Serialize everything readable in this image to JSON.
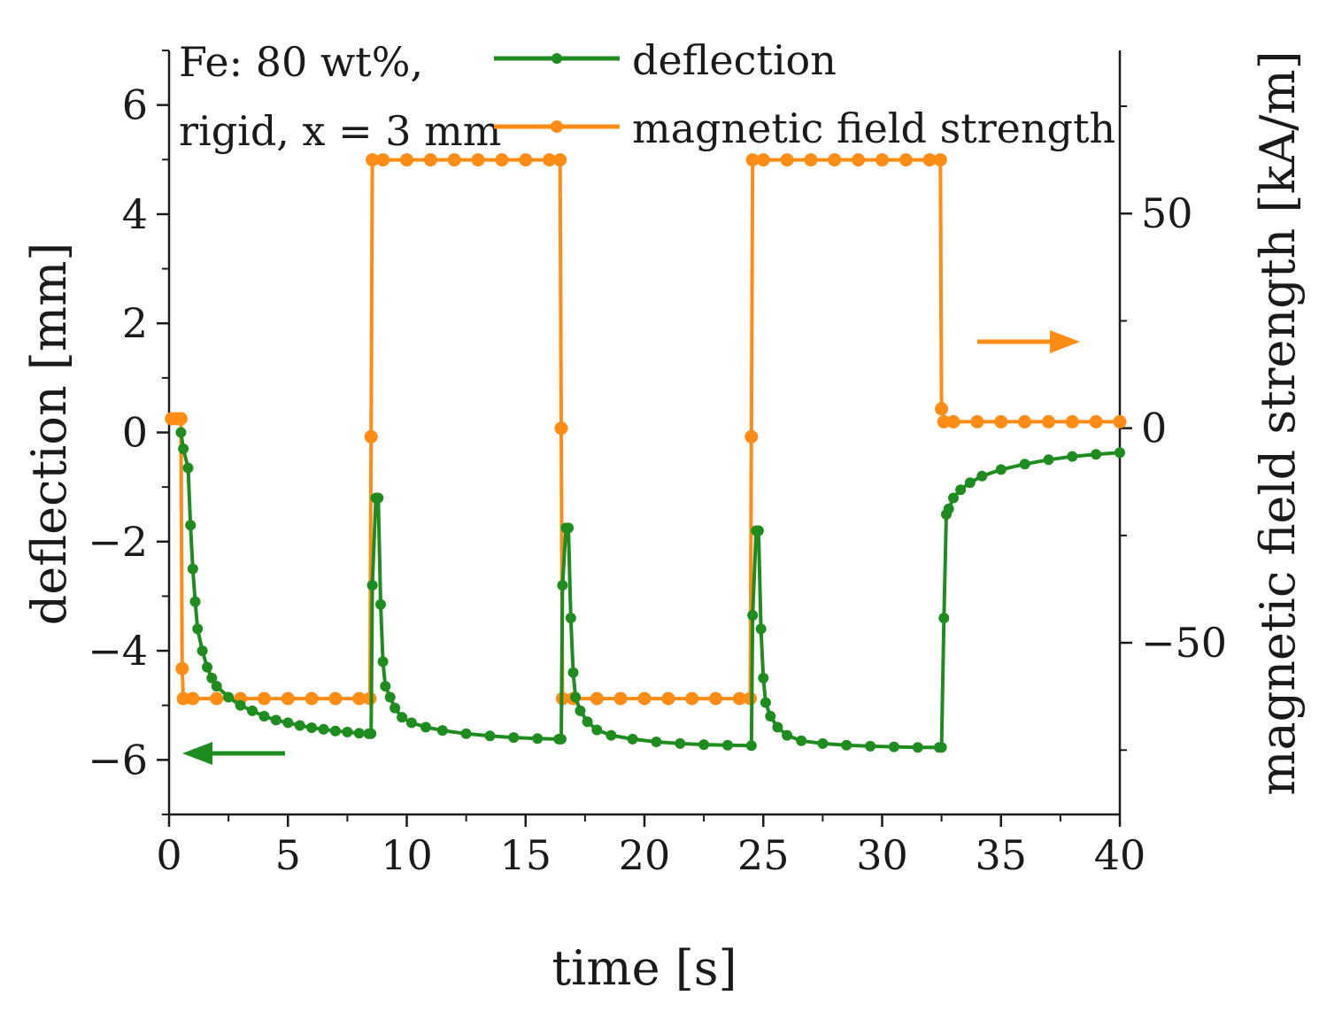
{
  "chart_data": {
    "type": "line",
    "title": "",
    "annotation_lines": [
      "Fe: 80 wt%,",
      "rigid, x = 3 mm"
    ],
    "xlabel": "time [s]",
    "ylabel_left": "deflection [mm]",
    "ylabel_right": "magnetic field strength [kA/m]",
    "xlim": [
      0,
      40
    ],
    "ylim_left": [
      -7,
      7
    ],
    "ylim_right": [
      -90,
      88
    ],
    "x_ticks": [
      0,
      5,
      10,
      15,
      20,
      25,
      30,
      35,
      40
    ],
    "y_left_ticks": [
      -6,
      -4,
      -2,
      0,
      2,
      4,
      6
    ],
    "y_left_tick_labels": [
      "−6",
      "−4",
      "−2",
      "0",
      "2",
      "4",
      "6"
    ],
    "y_right_ticks": [
      -50,
      0,
      50
    ],
    "y_right_tick_labels": [
      "−50",
      "0",
      "50"
    ],
    "legend_position": "top",
    "colors": {
      "deflection": "#1e8c1e",
      "field": "#ff8c14",
      "axis": "#1a1a1a"
    },
    "series": [
      {
        "name": "deflection",
        "axis": "left",
        "color": "#1e8c1e",
        "points": [
          [
            0.5,
            0.0
          ],
          [
            0.6,
            -0.3
          ],
          [
            0.8,
            -0.65
          ],
          [
            0.9,
            -1.7
          ],
          [
            1.0,
            -2.5
          ],
          [
            1.1,
            -3.1
          ],
          [
            1.2,
            -3.6
          ],
          [
            1.4,
            -4.0
          ],
          [
            1.6,
            -4.3
          ],
          [
            1.8,
            -4.5
          ],
          [
            2.0,
            -4.65
          ],
          [
            2.5,
            -4.85
          ],
          [
            3.0,
            -5.0
          ],
          [
            3.5,
            -5.1
          ],
          [
            4.0,
            -5.2
          ],
          [
            4.5,
            -5.27
          ],
          [
            5.0,
            -5.32
          ],
          [
            5.5,
            -5.37
          ],
          [
            6.0,
            -5.41
          ],
          [
            6.5,
            -5.44
          ],
          [
            7.0,
            -5.47
          ],
          [
            7.5,
            -5.49
          ],
          [
            8.0,
            -5.51
          ],
          [
            8.4,
            -5.52
          ],
          [
            8.5,
            -5.52
          ],
          [
            8.55,
            -2.8
          ],
          [
            8.7,
            -1.2
          ],
          [
            8.8,
            -1.2
          ],
          [
            8.9,
            -3.15
          ],
          [
            9.0,
            -4.2
          ],
          [
            9.1,
            -4.65
          ],
          [
            9.3,
            -4.85
          ],
          [
            9.5,
            -5.05
          ],
          [
            9.8,
            -5.22
          ],
          [
            10.2,
            -5.32
          ],
          [
            10.8,
            -5.4
          ],
          [
            11.5,
            -5.46
          ],
          [
            12.5,
            -5.52
          ],
          [
            13.5,
            -5.56
          ],
          [
            14.5,
            -5.59
          ],
          [
            15.5,
            -5.61
          ],
          [
            16.4,
            -5.62
          ],
          [
            16.5,
            -5.62
          ],
          [
            16.55,
            -2.8
          ],
          [
            16.7,
            -1.75
          ],
          [
            16.8,
            -1.75
          ],
          [
            16.9,
            -3.4
          ],
          [
            17.0,
            -4.4
          ],
          [
            17.1,
            -4.85
          ],
          [
            17.3,
            -5.1
          ],
          [
            17.6,
            -5.3
          ],
          [
            18.0,
            -5.45
          ],
          [
            18.6,
            -5.55
          ],
          [
            19.5,
            -5.62
          ],
          [
            20.5,
            -5.67
          ],
          [
            21.5,
            -5.7
          ],
          [
            22.5,
            -5.72
          ],
          [
            23.5,
            -5.73
          ],
          [
            24.5,
            -5.74
          ],
          [
            24.55,
            -3.35
          ],
          [
            24.7,
            -1.8
          ],
          [
            24.8,
            -1.8
          ],
          [
            24.9,
            -3.6
          ],
          [
            25.0,
            -4.5
          ],
          [
            25.1,
            -4.95
          ],
          [
            25.3,
            -5.2
          ],
          [
            25.6,
            -5.4
          ],
          [
            26.0,
            -5.55
          ],
          [
            26.6,
            -5.65
          ],
          [
            27.5,
            -5.7
          ],
          [
            28.5,
            -5.73
          ],
          [
            29.5,
            -5.75
          ],
          [
            30.5,
            -5.76
          ],
          [
            31.5,
            -5.77
          ],
          [
            32.4,
            -5.77
          ],
          [
            32.5,
            -5.77
          ],
          [
            32.6,
            -3.4
          ],
          [
            32.7,
            -1.5
          ],
          [
            32.8,
            -1.4
          ],
          [
            33.0,
            -1.2
          ],
          [
            33.3,
            -1.05
          ],
          [
            33.7,
            -0.92
          ],
          [
            34.2,
            -0.8
          ],
          [
            35.0,
            -0.68
          ],
          [
            36.0,
            -0.58
          ],
          [
            37.0,
            -0.5
          ],
          [
            38.0,
            -0.44
          ],
          [
            39.0,
            -0.4
          ],
          [
            40.0,
            -0.37
          ]
        ]
      },
      {
        "name": "magnetic field strength",
        "axis": "right",
        "color": "#ff8c14",
        "points": [
          [
            0.1,
            2.2
          ],
          [
            0.3,
            2.2
          ],
          [
            0.5,
            2.2
          ],
          [
            0.55,
            -56
          ],
          [
            0.6,
            -63
          ],
          [
            1.0,
            -63
          ],
          [
            2.0,
            -63
          ],
          [
            3.0,
            -63
          ],
          [
            4.0,
            -63
          ],
          [
            5.0,
            -63
          ],
          [
            6.0,
            -63
          ],
          [
            7.0,
            -63
          ],
          [
            8.0,
            -63
          ],
          [
            8.45,
            -63
          ],
          [
            8.5,
            -2
          ],
          [
            8.55,
            62.5
          ],
          [
            9.0,
            62.5
          ],
          [
            10.0,
            62.5
          ],
          [
            11.0,
            62.5
          ],
          [
            12.0,
            62.5
          ],
          [
            13.0,
            62.5
          ],
          [
            14.0,
            62.5
          ],
          [
            15.0,
            62.5
          ],
          [
            16.0,
            62.5
          ],
          [
            16.45,
            62.5
          ],
          [
            16.5,
            0
          ],
          [
            16.55,
            -63
          ],
          [
            17.0,
            -63
          ],
          [
            18.0,
            -63
          ],
          [
            19.0,
            -63
          ],
          [
            20.0,
            -63
          ],
          [
            21.0,
            -63
          ],
          [
            22.0,
            -63
          ],
          [
            23.0,
            -63
          ],
          [
            24.0,
            -63
          ],
          [
            24.45,
            -63
          ],
          [
            24.5,
            -2
          ],
          [
            24.55,
            62.5
          ],
          [
            25.0,
            62.5
          ],
          [
            26.0,
            62.5
          ],
          [
            27.0,
            62.5
          ],
          [
            28.0,
            62.5
          ],
          [
            29.0,
            62.5
          ],
          [
            30.0,
            62.5
          ],
          [
            31.0,
            62.5
          ],
          [
            32.0,
            62.5
          ],
          [
            32.45,
            62.5
          ],
          [
            32.5,
            4.5
          ],
          [
            32.6,
            1.5
          ],
          [
            33.0,
            1.5
          ],
          [
            34.0,
            1.5
          ],
          [
            35.0,
            1.5
          ],
          [
            36.0,
            1.5
          ],
          [
            37.0,
            1.5
          ],
          [
            38.0,
            1.5
          ],
          [
            39.0,
            1.5
          ],
          [
            40.0,
            1.5
          ]
        ]
      }
    ]
  }
}
